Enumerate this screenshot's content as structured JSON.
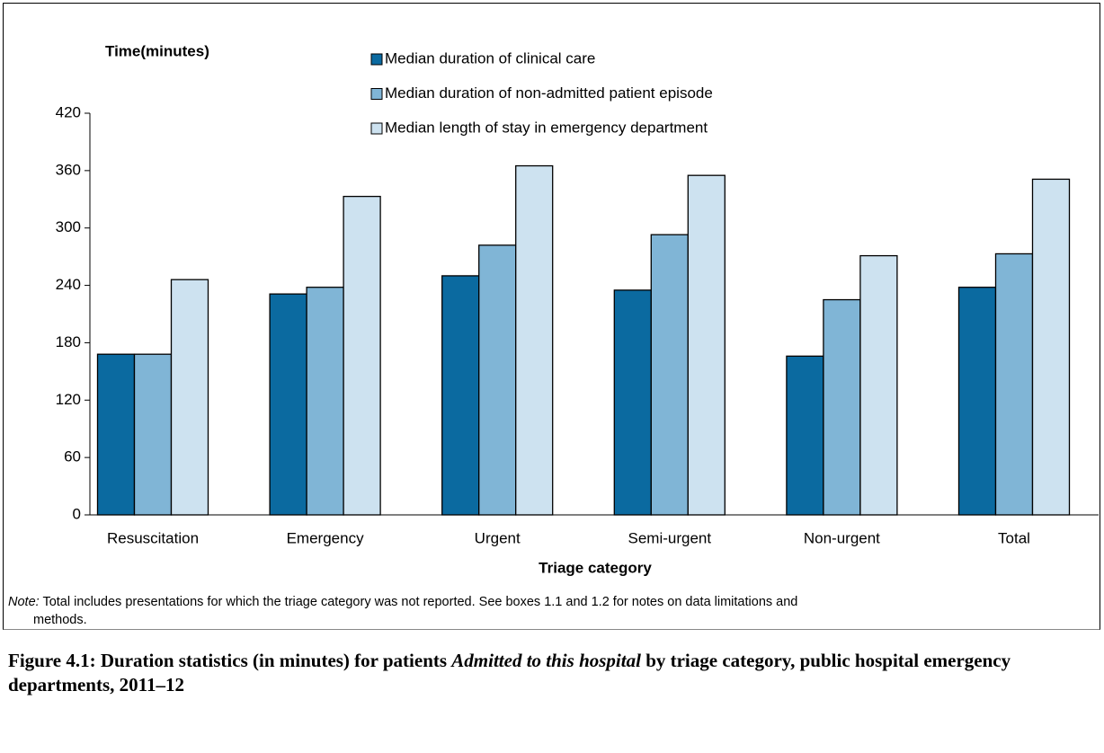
{
  "chart_data": {
    "type": "bar",
    "y_axis_title": "Time(minutes)",
    "x_axis_title": "Triage category",
    "categories": [
      "Resuscitation",
      "Emergency",
      "Urgent",
      "Semi-urgent",
      "Non-urgent",
      "Total"
    ],
    "series": [
      {
        "name": "Median duration of clinical care",
        "color": "#0b6aa0",
        "values": [
          168,
          231,
          250,
          235,
          166,
          238
        ]
      },
      {
        "name": "Median duration of non-admitted patient episode",
        "color": "#80b5d6",
        "values": [
          168,
          238,
          282,
          293,
          225,
          273
        ]
      },
      {
        "name": "Median length of stay in emergency department",
        "color": "#cde2f0",
        "values": [
          246,
          333,
          365,
          355,
          271,
          351
        ]
      }
    ],
    "ylim": [
      0,
      420
    ],
    "yticks": [
      0,
      60,
      120,
      180,
      240,
      300,
      360,
      420
    ],
    "grid": false
  },
  "note": {
    "label": "Note:",
    "text": "Total includes presentations for which the triage category was not reported. See boxes 1.1 and 1.2 for notes on data limitations and",
    "text_continued": "methods."
  },
  "caption": {
    "part1": "Figure 4.1: Duration statistics (in minutes) for patients ",
    "italic": "Admitted to this hospital",
    "part2": " by triage category, public hospital emergency departments, 2011–12"
  }
}
